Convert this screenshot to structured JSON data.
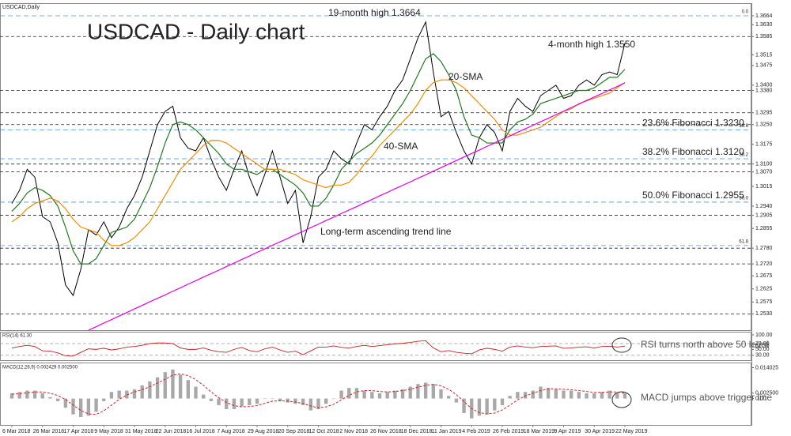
{
  "chart_data": [
    {
      "type": "line",
      "title": "USDCAD - Daily chart",
      "annotations": [
        "19-month high 1.3664",
        "4-month high 1.3550"
      ],
      "categories": [
        "6 Mar 2018",
        null,
        null,
        null,
        "26 Mar 2018",
        null,
        null,
        null,
        "17 Apr 2018",
        null,
        null,
        null,
        "9 May 2018",
        null,
        null,
        null,
        "31 May 2018",
        null,
        null,
        null,
        "22 Jun 2018",
        null,
        null,
        null,
        "16 Jul 2018",
        null,
        null,
        null,
        "7 Aug 2018",
        null,
        null,
        null,
        "29 Aug 2018",
        null,
        null,
        null,
        "20 Sep 2018",
        null,
        null,
        null,
        "12 Oct 2018",
        null,
        null,
        null,
        "2 Nov 2018",
        null,
        null,
        null,
        "26 Nov 2018",
        null,
        null,
        null,
        "18 Dec 2018",
        null,
        null,
        null,
        "11 Jan 2019",
        null,
        null,
        null,
        "4 Feb 2019",
        null,
        null,
        null,
        "26 Feb 2019",
        null,
        null,
        null,
        "18 Mar 2019",
        null,
        null,
        null,
        "9 Apr 2019",
        null,
        null,
        null,
        "30 Apr 2019",
        null,
        null,
        null,
        "22 May 2019"
      ],
      "series": [
        {
          "name": "USDCAD,Daily",
          "color": "#000000",
          "values": [
            1.295,
            1.3,
            1.308,
            1.305,
            1.29,
            1.288,
            1.28,
            1.264,
            1.26,
            1.27,
            1.285,
            1.283,
            1.288,
            1.282,
            1.286,
            1.293,
            1.298,
            1.305,
            1.315,
            1.325,
            1.33,
            1.332,
            1.32,
            1.316,
            1.315,
            1.32,
            1.312,
            1.305,
            1.3,
            1.308,
            1.315,
            1.305,
            1.298,
            1.306,
            1.315,
            1.305,
            1.295,
            1.3,
            1.28,
            1.29,
            1.305,
            1.308,
            1.315,
            1.312,
            1.31,
            1.318,
            1.325,
            1.323,
            1.328,
            1.332,
            1.338,
            1.342,
            1.35,
            1.358,
            1.364,
            1.345,
            1.328,
            1.33,
            1.322,
            1.315,
            1.31,
            1.32,
            1.325,
            1.322,
            1.315,
            1.33,
            1.335,
            1.332,
            1.33,
            1.336,
            1.338,
            1.34,
            1.335,
            1.336,
            1.34,
            1.342,
            1.34,
            1.344,
            1.345,
            1.344,
            1.356
          ]
        },
        {
          "name": "20-SMA",
          "color": "#1f7a1f",
          "values": [
            1.292,
            1.295,
            1.299,
            1.301,
            1.3,
            1.298,
            1.294,
            1.286,
            1.277,
            1.272,
            1.272,
            1.274,
            1.279,
            1.284,
            1.285,
            1.286,
            1.289,
            1.295,
            1.301,
            1.309,
            1.318,
            1.325,
            1.326,
            1.325,
            1.323,
            1.32,
            1.317,
            1.314,
            1.31,
            1.308,
            1.308,
            1.307,
            1.306,
            1.308,
            1.308,
            1.306,
            1.304,
            1.302,
            1.299,
            1.294,
            1.294,
            1.297,
            1.302,
            1.308,
            1.311,
            1.314,
            1.316,
            1.318,
            1.321,
            1.325,
            1.329,
            1.333,
            1.338,
            1.344,
            1.35,
            1.352,
            1.349,
            1.344,
            1.338,
            1.328,
            1.321,
            1.32,
            1.318,
            1.318,
            1.318,
            1.323,
            1.326,
            1.327,
            1.329,
            1.333,
            1.334,
            1.335,
            1.336,
            1.337,
            1.338,
            1.338,
            1.339,
            1.341,
            1.343,
            1.343,
            1.346
          ]
        },
        {
          "name": "40-SMA",
          "color": "#f08c00",
          "values": [
            1.288,
            1.29,
            1.293,
            1.295,
            1.296,
            1.297,
            1.296,
            1.293,
            1.289,
            1.286,
            1.285,
            1.284,
            1.281,
            1.279,
            1.279,
            1.28,
            1.282,
            1.285,
            1.288,
            1.293,
            1.298,
            1.303,
            1.308,
            1.311,
            1.314,
            1.317,
            1.319,
            1.319,
            1.318,
            1.316,
            1.314,
            1.312,
            1.31,
            1.308,
            1.308,
            1.308,
            1.307,
            1.306,
            1.304,
            1.303,
            1.302,
            1.301,
            1.302,
            1.302,
            1.303,
            1.306,
            1.31,
            1.313,
            1.317,
            1.32,
            1.323,
            1.326,
            1.329,
            1.333,
            1.338,
            1.341,
            1.342,
            1.342,
            1.341,
            1.339,
            1.336,
            1.333,
            1.33,
            1.327,
            1.323,
            1.321,
            1.321,
            1.322,
            1.323,
            1.324,
            1.326,
            1.328,
            1.33,
            1.331,
            1.333,
            1.334,
            1.335,
            1.336,
            1.337,
            1.339,
            1.341
          ]
        },
        {
          "name": "Long-term ascending trend line",
          "color": "#e600e6",
          "values": [
            null,
            null,
            null,
            null,
            null,
            null,
            null,
            null,
            null,
            null,
            1.2468,
            1.2481,
            1.2495,
            1.2508,
            1.2522,
            1.2535,
            1.2549,
            1.2562,
            1.2576,
            1.2589,
            1.2602,
            1.2616,
            1.2629,
            1.2643,
            1.2656,
            1.267,
            1.2683,
            1.2696,
            1.271,
            1.2723,
            1.2737,
            1.275,
            1.2764,
            1.2777,
            1.2791,
            1.2804,
            1.2817,
            1.2831,
            1.2844,
            1.2858,
            1.2871,
            1.2885,
            1.2898,
            1.2912,
            1.2925,
            1.2938,
            1.2952,
            1.2965,
            1.2979,
            1.2992,
            1.3006,
            1.3019,
            1.3032,
            1.3046,
            1.3059,
            1.3073,
            1.3086,
            1.31,
            1.3113,
            1.3127,
            1.314,
            1.3153,
            1.3167,
            1.318,
            1.3194,
            1.3207,
            1.3221,
            1.3234,
            1.3247,
            1.3261,
            1.3274,
            1.3288,
            1.3301,
            1.3315,
            1.3328,
            1.3342,
            1.3355,
            1.3368,
            1.3382,
            1.3395,
            1.3409
          ]
        }
      ],
      "ylim": [
        1.2468,
        1.3709
      ],
      "yticks": [
        {
          "value": 1.3664,
          "label": "1.3664"
        },
        {
          "value": 1.363,
          "label": "1.3630"
        },
        {
          "value": 1.3585,
          "label": "1.3585"
        },
        {
          "value": 1.3515,
          "label": "1.3515"
        },
        {
          "value": 1.3475,
          "label": "1.3475"
        },
        {
          "value": 1.34,
          "label": "1.3400"
        },
        {
          "value": 1.338,
          "label": "1.3380"
        },
        {
          "value": 1.3295,
          "label": "1.3295"
        },
        {
          "value": 1.325,
          "label": "1.3250"
        },
        {
          "value": 1.3175,
          "label": "1.3175"
        },
        {
          "value": 1.31,
          "label": "1.3100"
        },
        {
          "value": 1.307,
          "label": "1.3070"
        },
        {
          "value": 1.3015,
          "label": "1.3015"
        },
        {
          "value": 1.294,
          "label": "1.2940"
        },
        {
          "value": 1.2905,
          "label": "1.2905"
        },
        {
          "value": 1.2855,
          "label": "1.2855"
        },
        {
          "value": 1.278,
          "label": "1.2780"
        },
        {
          "value": 1.272,
          "label": "1.2720"
        },
        {
          "value": 1.2675,
          "label": "1.2675"
        },
        {
          "value": 1.2625,
          "label": "1.2625"
        },
        {
          "value": 1.2575,
          "label": "1.2575"
        },
        {
          "value": 1.253,
          "label": "1.2530"
        }
      ],
      "levels": [
        1.3585,
        1.338,
        1.3295,
        1.325,
        1.31,
        1.307,
        1.2905,
        1.278,
        1.272,
        1.253
      ],
      "fibonacci_color": "#4a90e2",
      "fibonacci": [
        {
          "ratio": "0.0",
          "value": 1.3664
        },
        {
          "ratio": "23.6",
          "value": 1.323,
          "text": "23.6% Fibonacci 1.3230"
        },
        {
          "ratio": "38.2",
          "value": 1.312,
          "text": "38.2% Fibonacci 1.3120"
        },
        {
          "ratio": "50.0",
          "value": 1.2955,
          "text": "50.0% Fibonacci 1.2955"
        },
        {
          "ratio": "61.8",
          "value": 1.279
        }
      ]
    },
    {
      "type": "line",
      "title": "RSI(14) 61.30",
      "annotations": [
        "RSI turns north above 50 level"
      ],
      "series": [
        {
          "color": "#c81e1e",
          "values": [
            55,
            60,
            64,
            60,
            45,
            44,
            38,
            28,
            27,
            40,
            52,
            50,
            54,
            48,
            52,
            58,
            60,
            64,
            70,
            72,
            72,
            70,
            55,
            50,
            50,
            55,
            47,
            42,
            40,
            50,
            57,
            46,
            42,
            52,
            58,
            48,
            40,
            44,
            32,
            45,
            58,
            58,
            62,
            57,
            55,
            60,
            64,
            60,
            63,
            66,
            69,
            71,
            74,
            78,
            80,
            55,
            42,
            46,
            40,
            37,
            35,
            48,
            54,
            50,
            44,
            58,
            62,
            58,
            56,
            60,
            61,
            62,
            54,
            55,
            58,
            59,
            55,
            60,
            61,
            58,
            61.3
          ]
        }
      ],
      "ylim": [
        13,
        108
      ],
      "yticks": [
        {
          "value": 100,
          "label": "100.00"
        },
        {
          "value": 70,
          "label": "70.00"
        },
        {
          "value": 61.3,
          "label": "61.30"
        },
        {
          "value": 50,
          "label": "50.00"
        },
        {
          "value": 30,
          "label": "30.00"
        }
      ],
      "levels": [
        70,
        30
      ]
    },
    {
      "type": "macd",
      "title": "MACD(12,26,9) 0.002429 0.002500",
      "annotations": [
        "MACD jumps above trigger line"
      ],
      "color": "#a8a8a8",
      "values": [
        0.0024,
        0.003,
        0.0036,
        0.0036,
        0.0024,
        0.0006,
        -0.0012,
        -0.0042,
        -0.0072,
        -0.0084,
        -0.0078,
        -0.006,
        -0.0012,
        0.003,
        0.0036,
        0.0036,
        0.0042,
        0.006,
        0.0078,
        0.0096,
        0.012,
        0.0132,
        0.0108,
        0.0084,
        0.0054,
        0.0018,
        -0.0012,
        -0.003,
        -0.0048,
        -0.0048,
        -0.0036,
        -0.003,
        -0.0024,
        0,
        0,
        -0.0012,
        -0.0018,
        -0.0024,
        -0.003,
        -0.0054,
        -0.0048,
        -0.0024,
        0,
        0.0036,
        0.0048,
        0.0048,
        0.0036,
        0.003,
        0.0024,
        0.003,
        0.0036,
        0.0042,
        0.0054,
        0.0066,
        0.0072,
        0.0066,
        0.0042,
        0.0012,
        -0.0018,
        -0.0066,
        -0.009,
        -0.0078,
        -0.0072,
        -0.0054,
        -0.003,
        0.0012,
        0.003,
        0.003,
        0.0036,
        0.0054,
        0.0048,
        0.0042,
        0.0036,
        0.0036,
        0.003,
        0.0024,
        0.0024,
        0.003,
        0.0036,
        0.0024,
        0.002429
      ],
      "signal_color": "#d62020",
      "signal": [
        0.002,
        0.0022,
        0.0026,
        0.003,
        0.003,
        0.0024,
        0.0014,
        -0.0004,
        -0.003,
        -0.0054,
        -0.007,
        -0.0072,
        -0.0056,
        -0.003,
        -0.0004,
        0.0016,
        0.003,
        0.004,
        0.0054,
        0.007,
        0.0088,
        0.0106,
        0.0112,
        0.0104,
        0.0086,
        0.006,
        0.003,
        0.0004,
        -0.0018,
        -0.0032,
        -0.0038,
        -0.0036,
        -0.0032,
        -0.0022,
        -0.0012,
        -0.001,
        -0.0012,
        -0.0016,
        -0.0022,
        -0.0034,
        -0.0042,
        -0.0038,
        -0.0026,
        -0.0006,
        0.0014,
        0.003,
        0.0036,
        0.0036,
        0.0032,
        0.003,
        0.0032,
        0.0036,
        0.0042,
        0.0052,
        0.006,
        0.0064,
        0.0058,
        0.0042,
        0.0018,
        -0.0014,
        -0.0046,
        -0.0064,
        -0.007,
        -0.0066,
        -0.0052,
        -0.003,
        -0.0006,
        0.0012,
        0.0024,
        0.0036,
        0.0044,
        0.0044,
        0.0042,
        0.004,
        0.0036,
        0.0032,
        0.0028,
        0.0028,
        0.003,
        0.003,
        0.0025
      ],
      "ylim": [
        -0.012,
        0.016
      ],
      "yticks": [
        0.014025,
        {
          "value": 0.0025,
          "label": "0.002500"
        },
        {
          "value": 0,
          "label": "0.00"
        }
      ]
    }
  ]
}
